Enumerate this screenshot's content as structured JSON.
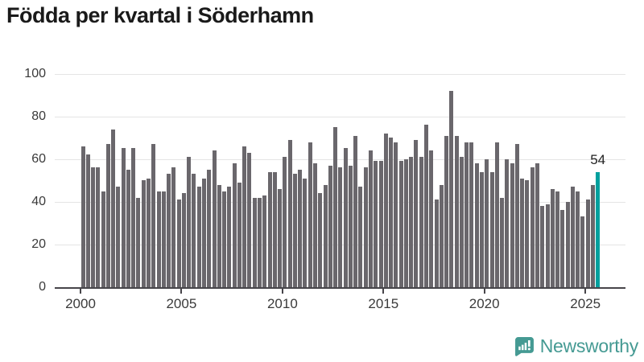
{
  "header": {
    "title": "Födda per kvartal i Söderhamn"
  },
  "chart_data": {
    "type": "bar",
    "title": "Födda per kvartal i Söderhamn",
    "x_unit": "quarter",
    "bars_per_year": 4,
    "x_tick_labels": [
      "2000",
      "2005",
      "2010",
      "2015",
      "2020",
      "2025"
    ],
    "yticks": [
      0,
      20,
      40,
      60,
      80,
      100
    ],
    "ylim": [
      0,
      100
    ],
    "grid": true,
    "values": [
      66,
      62,
      56,
      56,
      45,
      67,
      74,
      47,
      65,
      55,
      65,
      42,
      50,
      51,
      67,
      45,
      45,
      53,
      56,
      41,
      44,
      61,
      53,
      47,
      51,
      55,
      64,
      48,
      45,
      47,
      58,
      49,
      66,
      63,
      42,
      42,
      43,
      54,
      54,
      46,
      61,
      69,
      53,
      55,
      51,
      68,
      58,
      44,
      48,
      57,
      75,
      56,
      65,
      57,
      71,
      47,
      56,
      64,
      59,
      59,
      72,
      70,
      68,
      59,
      60,
      61,
      69,
      61,
      76,
      64,
      41,
      48,
      71,
      92,
      71,
      61,
      68,
      68,
      58,
      54,
      60,
      54,
      68,
      42,
      60,
      58,
      67,
      51,
      50,
      56,
      58,
      38,
      39,
      46,
      45,
      36,
      40,
      47,
      45,
      33,
      41,
      48,
      54
    ],
    "highlight": {
      "index": 102,
      "value": 54,
      "label": "54"
    }
  },
  "colors": {
    "bar": "#6a676c",
    "highlight": "#00a09e",
    "grid": "#e4e4e4",
    "axis": "#47454a",
    "text": "#3a3a3a",
    "title": "#1a1a1a",
    "annotation": "#222222",
    "brand": "#459a93"
  },
  "footer": {
    "brand": "Newsworthy"
  }
}
